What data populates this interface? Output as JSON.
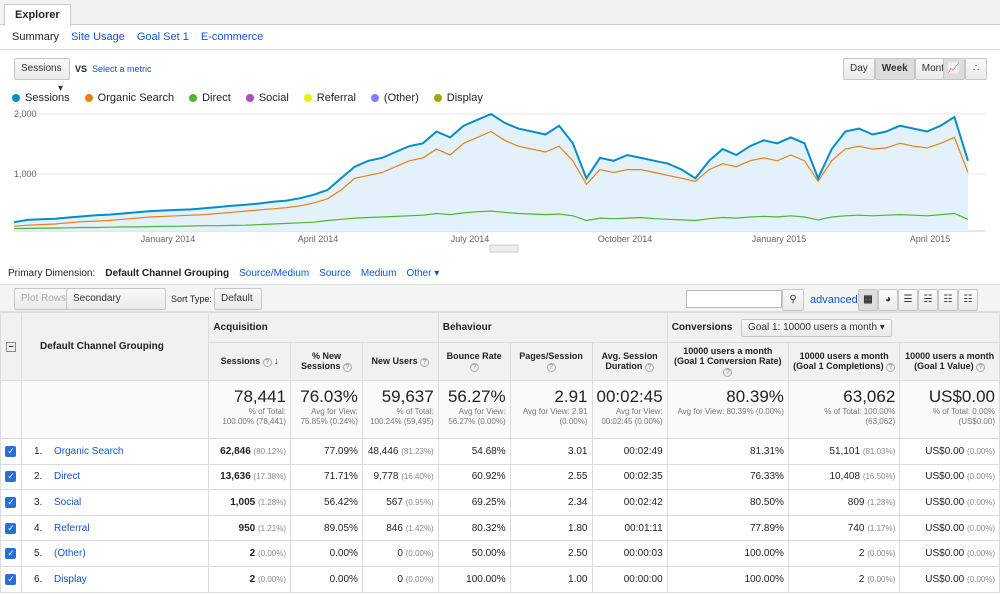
{
  "tabs": {
    "explorer": "Explorer"
  },
  "subnav": [
    "Summary",
    "Site Usage",
    "Goal Set 1",
    "E-commerce"
  ],
  "metric_select": {
    "value": "Sessions",
    "vs": "VS",
    "select_metric": "Select a metric"
  },
  "granularity": [
    "Day",
    "Week",
    "Month"
  ],
  "legend": [
    {
      "name": "Sessions",
      "color": "#058dc7"
    },
    {
      "name": "Organic Search",
      "color": "#ed7e17"
    },
    {
      "name": "Direct",
      "color": "#50b432"
    },
    {
      "name": "Social",
      "color": "#af49c5"
    },
    {
      "name": "Referral",
      "color": "#edef00"
    },
    {
      "name": "(Other)",
      "color": "#8080ff"
    },
    {
      "name": "Display",
      "color": "#a0a700"
    }
  ],
  "chart_data": {
    "type": "line",
    "y_ticks": [
      "2,000",
      "1,000"
    ],
    "x_ticks": [
      "January 2014",
      "April 2014",
      "July 2014",
      "October 2014",
      "January 2015",
      "April 2015"
    ],
    "ylim": [
      0,
      2000
    ],
    "series": [
      {
        "name": "Sessions",
        "values": [
          150,
          190,
          200,
          210,
          230,
          250,
          270,
          280,
          300,
          320,
          340,
          350,
          360,
          370,
          390,
          410,
          430,
          450,
          470,
          500,
          520,
          560,
          620,
          700,
          900,
          1100,
          1200,
          1250,
          1350,
          1450,
          1500,
          1700,
          1600,
          1800,
          1900,
          2000,
          1850,
          1750,
          1700,
          1650,
          1800,
          1500,
          900,
          1250,
          1200,
          1300,
          1250,
          1200,
          1150,
          1050,
          900,
          1200,
          1400,
          1300,
          1450,
          1550,
          1500,
          1600,
          1500,
          900,
          1400,
          1700,
          1750,
          1650,
          1700,
          1800,
          1750,
          1700,
          1800,
          1950,
          1200
        ]
      },
      {
        "name": "Organic Search",
        "values": [
          80,
          100,
          110,
          120,
          140,
          160,
          170,
          180,
          200,
          220,
          240,
          250,
          260,
          270,
          280,
          300,
          320,
          340,
          360,
          380,
          400,
          430,
          480,
          550,
          700,
          900,
          950,
          1000,
          1100,
          1200,
          1250,
          1400,
          1300,
          1500,
          1600,
          1700,
          1550,
          1450,
          1400,
          1350,
          1450,
          1200,
          800,
          1050,
          1000,
          1050,
          1050,
          1000,
          950,
          900,
          850,
          1050,
          1150,
          1100,
          1200,
          1250,
          1200,
          1300,
          1200,
          850,
          1200,
          1400,
          1450,
          1400,
          1420,
          1500,
          1450,
          1420,
          1500,
          1600,
          1000
        ]
      },
      {
        "name": "Direct",
        "values": [
          40,
          45,
          50,
          50,
          55,
          60,
          60,
          65,
          70,
          70,
          75,
          80,
          80,
          85,
          90,
          90,
          95,
          100,
          110,
          120,
          130,
          140,
          150,
          180,
          200,
          220,
          230,
          240,
          250,
          260,
          270,
          300,
          280,
          310,
          330,
          340,
          320,
          300,
          290,
          280,
          290,
          260,
          180,
          220,
          210,
          220,
          230,
          210,
          200,
          190,
          180,
          210,
          230,
          220,
          240,
          250,
          240,
          260,
          240,
          190,
          240,
          260,
          270,
          260,
          270,
          280,
          270,
          260,
          280,
          300,
          200
        ]
      }
    ]
  },
  "dimension": {
    "label": "Primary Dimension:",
    "selected": "Default Channel Grouping",
    "options": [
      "Source/Medium",
      "Source",
      "Medium",
      "Other"
    ]
  },
  "toolbar": {
    "plot_rows": "Plot Rows",
    "secondary": "Secondary dimension",
    "sort_label": "Sort Type:",
    "sort_value": "Default",
    "advanced": "advanced"
  },
  "table": {
    "dim_header": "Default Channel Grouping",
    "groups": {
      "acq": "Acquisition",
      "beh": "Behaviour",
      "conv": "Conversions",
      "goal": "Goal 1: 10000 users a month"
    },
    "columns": [
      "Sessions",
      "% New Sessions",
      "New Users",
      "Bounce Rate",
      "Pages/Session",
      "Avg. Session Duration",
      "10000 users a month (Goal 1 Conversion Rate)",
      "10000 users a month (Goal 1 Completions)",
      "10000 users a month (Goal 1 Value)"
    ],
    "totals": [
      {
        "big": "78,441",
        "s1": "% of Total:",
        "s2": "100.00% (78,441)"
      },
      {
        "big": "76.03%",
        "s1": "Avg for View:",
        "s2": "75.85% (0.24%)"
      },
      {
        "big": "59,637",
        "s1": "% of Total:",
        "s2": "100.24% (59,495)"
      },
      {
        "big": "56.27%",
        "s1": "Avg for View:",
        "s2": "56.27% (0.00%)"
      },
      {
        "big": "2.91",
        "s1": "Avg for View: 2.91",
        "s2": "(0.00%)"
      },
      {
        "big": "00:02:45",
        "s1": "Avg for View:",
        "s2": "00:02:45 (0.00%)"
      },
      {
        "big": "80.39%",
        "s1": "Avg for View: 80.39% (0.00%)",
        "s2": ""
      },
      {
        "big": "63,062",
        "s1": "% of Total: 100.00%",
        "s2": "(63,062)"
      },
      {
        "big": "US$0.00",
        "s1": "% of Total: 0.00%",
        "s2": "(US$0.00)"
      }
    ],
    "rows": [
      {
        "n": "1.",
        "name": "Organic Search",
        "sessions": "62,846",
        "sp": "(80.12%)",
        "pns": "77.09%",
        "nu": "48,446",
        "nup": "(81.23%)",
        "br": "54.68%",
        "pps": "3.01",
        "dur": "00:02:49",
        "cr": "81.31%",
        "comp": "51,101",
        "compp": "(81.03%)",
        "val": "US$0.00",
        "valp": "(0.00%)"
      },
      {
        "n": "2.",
        "name": "Direct",
        "sessions": "13,636",
        "sp": "(17.38%)",
        "pns": "71.71%",
        "nu": "9,778",
        "nup": "(16.40%)",
        "br": "60.92%",
        "pps": "2.55",
        "dur": "00:02:35",
        "cr": "76.33%",
        "comp": "10,408",
        "compp": "(16.50%)",
        "val": "US$0.00",
        "valp": "(0.00%)"
      },
      {
        "n": "3.",
        "name": "Social",
        "sessions": "1,005",
        "sp": "(1.28%)",
        "pns": "56.42%",
        "nu": "567",
        "nup": "(0.95%)",
        "br": "69.25%",
        "pps": "2.34",
        "dur": "00:02:42",
        "cr": "80.50%",
        "comp": "809",
        "compp": "(1.28%)",
        "val": "US$0.00",
        "valp": "(0.00%)"
      },
      {
        "n": "4.",
        "name": "Referral",
        "sessions": "950",
        "sp": "(1.21%)",
        "pns": "89.05%",
        "nu": "846",
        "nup": "(1.42%)",
        "br": "80.32%",
        "pps": "1.80",
        "dur": "00:01:11",
        "cr": "77.89%",
        "comp": "740",
        "compp": "(1.17%)",
        "val": "US$0.00",
        "valp": "(0.00%)"
      },
      {
        "n": "5.",
        "name": "(Other)",
        "sessions": "2",
        "sp": "(0.00%)",
        "pns": "0.00%",
        "nu": "0",
        "nup": "(0.00%)",
        "br": "50.00%",
        "pps": "2.50",
        "dur": "00:00:03",
        "cr": "100.00%",
        "comp": "2",
        "compp": "(0.00%)",
        "val": "US$0.00",
        "valp": "(0.00%)"
      },
      {
        "n": "6.",
        "name": "Display",
        "sessions": "2",
        "sp": "(0.00%)",
        "pns": "0.00%",
        "nu": "0",
        "nup": "(0.00%)",
        "br": "100.00%",
        "pps": "1.00",
        "dur": "00:00:00",
        "cr": "100.00%",
        "comp": "2",
        "compp": "(0.00%)",
        "val": "US$0.00",
        "valp": "(0.00%)"
      }
    ]
  }
}
